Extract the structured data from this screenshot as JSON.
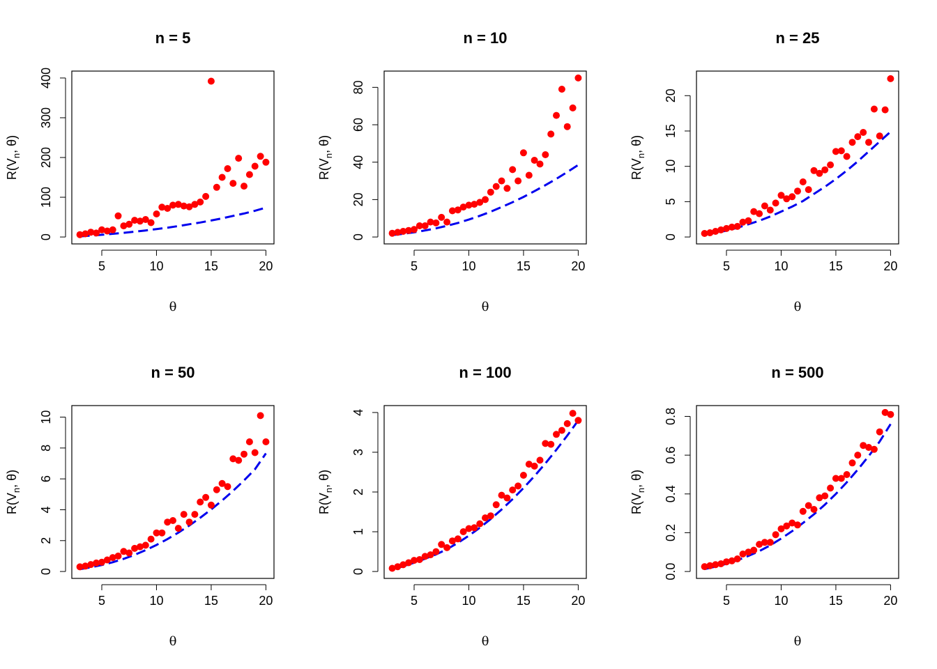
{
  "colors": {
    "points": "#ff0000",
    "curve": "#0000ee",
    "frame": "#000000"
  },
  "chart_data": [
    {
      "type": "scatter",
      "title": "n =  5",
      "xlabel": "θ",
      "ylabel_main": "R(V",
      "ylabel_sub": "n",
      "ylabel_tail": ", θ)",
      "xlim": [
        3,
        20
      ],
      "ylim": [
        0,
        400
      ],
      "xticks": [
        5,
        10,
        15,
        20
      ],
      "yticks": [
        0,
        100,
        200,
        300,
        400
      ],
      "xtick_labels": [
        "5",
        "10",
        "15",
        "20"
      ],
      "ytick_labels": [
        "0",
        "100",
        "200",
        "300",
        "400"
      ],
      "series": [
        {
          "type": "scatter",
          "x": [
            3.0,
            3.5,
            4.0,
            4.5,
            5.0,
            5.5,
            6.0,
            6.5,
            7.0,
            7.5,
            8.0,
            8.5,
            9.0,
            9.5,
            10.0,
            10.5,
            11.0,
            11.5,
            12.0,
            12.5,
            13.0,
            13.5,
            14.0,
            14.5,
            15.0,
            15.5,
            16.0,
            16.5,
            17.0,
            17.5,
            18.0,
            18.5,
            19.0,
            19.5,
            20.0
          ],
          "y": [
            6,
            8,
            12,
            10,
            18,
            15,
            18,
            53,
            28,
            32,
            42,
            40,
            44,
            36,
            58,
            75,
            72,
            80,
            82,
            78,
            76,
            82,
            88,
            102,
            392,
            125,
            150,
            172,
            135,
            198,
            128,
            157,
            178,
            203,
            188
          ]
        },
        {
          "type": "line",
          "x": [
            3,
            4,
            5,
            6,
            7,
            8,
            9,
            10,
            11,
            12,
            13,
            14,
            15,
            16,
            17,
            18,
            19,
            20
          ],
          "y": [
            1.5,
            3.5,
            5.5,
            8,
            10.5,
            13.5,
            16.5,
            20,
            23.5,
            27.5,
            32,
            36.5,
            41.5,
            47,
            53,
            59,
            66,
            74
          ]
        }
      ]
    },
    {
      "type": "scatter",
      "title": "n =  10",
      "xlabel": "θ",
      "ylabel_main": "R(V",
      "ylabel_sub": "n",
      "ylabel_tail": ", θ)",
      "xlim": [
        3,
        20
      ],
      "ylim": [
        0,
        85
      ],
      "xticks": [
        5,
        10,
        15,
        20
      ],
      "yticks": [
        0,
        20,
        40,
        60,
        80
      ],
      "xtick_labels": [
        "5",
        "10",
        "15",
        "20"
      ],
      "ytick_labels": [
        "0",
        "20",
        "40",
        "60",
        "80"
      ],
      "series": [
        {
          "type": "scatter",
          "x": [
            3.0,
            3.5,
            4.0,
            4.5,
            5.0,
            5.5,
            6.0,
            6.5,
            7.0,
            7.5,
            8.0,
            8.5,
            9.0,
            9.5,
            10.0,
            10.5,
            11.0,
            11.5,
            12.0,
            12.5,
            13.0,
            13.5,
            14.0,
            14.5,
            15.0,
            15.5,
            16.0,
            16.5,
            17.0,
            17.5,
            18.0,
            18.5,
            19.0,
            19.5,
            20.0
          ],
          "y": [
            2,
            2.5,
            3,
            3.5,
            4,
            6,
            6,
            8,
            7.5,
            10.5,
            8,
            14,
            14.5,
            16,
            17,
            17.5,
            18.5,
            20,
            24,
            27,
            30,
            26,
            36,
            30,
            45,
            33,
            41,
            39,
            44,
            55,
            65,
            79,
            59,
            69,
            85
          ]
        },
        {
          "type": "line",
          "x": [
            3,
            4,
            5,
            6,
            7,
            8,
            9,
            10,
            11,
            12,
            13,
            14,
            15,
            16,
            17,
            18,
            19,
            20
          ],
          "y": [
            1,
            1.7,
            2.5,
            3.5,
            4.6,
            6,
            7.5,
            9.3,
            11.3,
            13.5,
            16,
            18.6,
            21.4,
            24.5,
            27.7,
            31.1,
            34.7,
            38.5
          ]
        }
      ]
    },
    {
      "type": "scatter",
      "title": "n =  25",
      "xlabel": "θ",
      "ylabel_main": "R(V",
      "ylabel_sub": "n",
      "ylabel_tail": ", θ)",
      "xlim": [
        3,
        20
      ],
      "ylim": [
        0,
        22.5
      ],
      "xticks": [
        5,
        10,
        15,
        20
      ],
      "yticks": [
        0,
        5,
        10,
        15,
        20
      ],
      "xtick_labels": [
        "5",
        "10",
        "15",
        "20"
      ],
      "ytick_labels": [
        "0",
        "5",
        "10",
        "15",
        "20"
      ],
      "series": [
        {
          "type": "scatter",
          "x": [
            3.0,
            3.5,
            4.0,
            4.5,
            5.0,
            5.5,
            6.0,
            6.5,
            7.0,
            7.5,
            8.0,
            8.5,
            9.0,
            9.5,
            10.0,
            10.5,
            11.0,
            11.5,
            12.0,
            12.5,
            13.0,
            13.5,
            14.0,
            14.5,
            15.0,
            15.5,
            16.0,
            16.5,
            17.0,
            17.5,
            18.0,
            18.5,
            19.0,
            19.5,
            20.0
          ],
          "y": [
            0.5,
            0.6,
            0.8,
            1.0,
            1.2,
            1.4,
            1.5,
            2.1,
            2.3,
            3.6,
            3.3,
            4.4,
            3.8,
            4.8,
            5.9,
            5.4,
            5.7,
            6.5,
            7.8,
            6.7,
            9.4,
            9.0,
            9.5,
            10.2,
            12.1,
            12.2,
            11.4,
            13.4,
            14.2,
            14.8,
            13.4,
            18.1,
            14.3,
            18.0,
            22.4
          ]
        },
        {
          "type": "line",
          "x": [
            3,
            4,
            5,
            6,
            7,
            8,
            9,
            10,
            11,
            12,
            13,
            14,
            15,
            16,
            17,
            18,
            19,
            20
          ],
          "y": [
            0.3,
            0.6,
            0.9,
            1.3,
            1.8,
            2.3,
            2.9,
            3.6,
            4.3,
            5.1,
            6.1,
            7.1,
            8.2,
            9.4,
            10.7,
            12.1,
            13.5,
            14.9
          ]
        }
      ]
    },
    {
      "type": "scatter",
      "title": "n =  50",
      "xlabel": "θ",
      "ylabel_main": "R(V",
      "ylabel_sub": "n",
      "ylabel_tail": ", θ)",
      "xlim": [
        3,
        20
      ],
      "ylim": [
        0,
        10.3
      ],
      "xticks": [
        5,
        10,
        15,
        20
      ],
      "yticks": [
        0,
        2,
        4,
        6,
        8,
        10
      ],
      "xtick_labels": [
        "5",
        "10",
        "15",
        "20"
      ],
      "ytick_labels": [
        "0",
        "2",
        "4",
        "6",
        "8",
        "10"
      ],
      "series": [
        {
          "type": "scatter",
          "x": [
            3.0,
            3.5,
            4.0,
            4.5,
            5.0,
            5.5,
            6.0,
            6.5,
            7.0,
            7.5,
            8.0,
            8.5,
            9.0,
            9.5,
            10.0,
            10.5,
            11.0,
            11.5,
            12.0,
            12.5,
            13.0,
            13.5,
            14.0,
            14.5,
            15.0,
            15.5,
            16.0,
            16.5,
            17.0,
            17.5,
            18.0,
            18.5,
            19.0,
            19.5,
            20.0
          ],
          "y": [
            0.3,
            0.35,
            0.45,
            0.55,
            0.6,
            0.75,
            0.9,
            1.0,
            1.3,
            1.2,
            1.5,
            1.6,
            1.7,
            2.1,
            2.5,
            2.5,
            3.2,
            3.3,
            2.8,
            3.7,
            3.2,
            3.7,
            4.5,
            4.8,
            4.3,
            5.3,
            5.7,
            5.5,
            7.3,
            7.2,
            7.6,
            8.4,
            7.7,
            10.1,
            8.4
          ]
        },
        {
          "type": "line",
          "x": [
            3,
            4,
            5,
            6,
            7,
            8,
            9,
            10,
            11,
            12,
            13,
            14,
            15,
            16,
            17,
            18,
            19,
            20
          ],
          "y": [
            0.15,
            0.27,
            0.42,
            0.6,
            0.82,
            1.08,
            1.38,
            1.72,
            2.1,
            2.52,
            2.98,
            3.48,
            4.02,
            4.6,
            5.22,
            5.9,
            6.62,
            7.65
          ]
        }
      ]
    },
    {
      "type": "scatter",
      "title": "n =  100",
      "xlabel": "θ",
      "ylabel_main": "R(V",
      "ylabel_sub": "n",
      "ylabel_tail": ", θ)",
      "xlim": [
        3,
        20
      ],
      "ylim": [
        0,
        4.0
      ],
      "xticks": [
        5,
        10,
        15,
        20
      ],
      "yticks": [
        0,
        1,
        2,
        3,
        4
      ],
      "xtick_labels": [
        "5",
        "10",
        "15",
        "20"
      ],
      "ytick_labels": [
        "0",
        "1",
        "2",
        "3",
        "4"
      ],
      "series": [
        {
          "type": "scatter",
          "x": [
            3.0,
            3.5,
            4.0,
            4.5,
            5.0,
            5.5,
            6.0,
            6.5,
            7.0,
            7.5,
            8.0,
            8.5,
            9.0,
            9.5,
            10.0,
            10.5,
            11.0,
            11.5,
            12.0,
            12.5,
            13.0,
            13.5,
            14.0,
            14.5,
            15.0,
            15.5,
            16.0,
            16.5,
            17.0,
            17.5,
            18.0,
            18.5,
            19.0,
            19.5,
            20.0
          ],
          "y": [
            0.08,
            0.12,
            0.17,
            0.22,
            0.28,
            0.3,
            0.38,
            0.42,
            0.5,
            0.68,
            0.6,
            0.77,
            0.82,
            1.0,
            1.08,
            1.1,
            1.2,
            1.35,
            1.4,
            1.68,
            1.92,
            1.85,
            2.05,
            2.15,
            2.42,
            2.7,
            2.65,
            2.8,
            3.22,
            3.2,
            3.45,
            3.55,
            3.72,
            3.98,
            3.8
          ]
        },
        {
          "type": "line",
          "x": [
            3,
            4,
            5,
            6,
            7,
            8,
            9,
            10,
            11,
            12,
            13,
            14,
            15,
            16,
            17,
            18,
            19,
            20
          ],
          "y": [
            0.06,
            0.13,
            0.22,
            0.32,
            0.43,
            0.56,
            0.72,
            0.9,
            1.1,
            1.32,
            1.56,
            1.82,
            2.1,
            2.4,
            2.72,
            3.06,
            3.42,
            3.8
          ]
        }
      ]
    },
    {
      "type": "scatter",
      "title": "n =  500",
      "xlabel": "θ",
      "ylabel_main": "R(V",
      "ylabel_sub": "n",
      "ylabel_tail": ", θ)",
      "xlim": [
        3,
        20
      ],
      "ylim": [
        0,
        0.82
      ],
      "xticks": [
        5,
        10,
        15,
        20
      ],
      "yticks": [
        0,
        0.2,
        0.4,
        0.6,
        0.8
      ],
      "xtick_labels": [
        "5",
        "10",
        "15",
        "20"
      ],
      "ytick_labels": [
        "0.0",
        "0.2",
        "0.4",
        "0.6",
        "0.8"
      ],
      "series": [
        {
          "type": "scatter",
          "x": [
            3.0,
            3.5,
            4.0,
            4.5,
            5.0,
            5.5,
            6.0,
            6.5,
            7.0,
            7.5,
            8.0,
            8.5,
            9.0,
            9.5,
            10.0,
            10.5,
            11.0,
            11.5,
            12.0,
            12.5,
            13.0,
            13.5,
            14.0,
            14.5,
            15.0,
            15.5,
            16.0,
            16.5,
            17.0,
            17.5,
            18.0,
            18.5,
            19.0,
            19.5,
            20.0
          ],
          "y": [
            0.025,
            0.03,
            0.035,
            0.04,
            0.05,
            0.055,
            0.065,
            0.09,
            0.1,
            0.11,
            0.14,
            0.15,
            0.15,
            0.19,
            0.22,
            0.235,
            0.25,
            0.24,
            0.31,
            0.34,
            0.32,
            0.38,
            0.39,
            0.43,
            0.48,
            0.48,
            0.5,
            0.56,
            0.6,
            0.65,
            0.64,
            0.63,
            0.72,
            0.82,
            0.81
          ]
        },
        {
          "type": "line",
          "x": [
            3,
            4,
            5,
            6,
            7,
            8,
            9,
            10,
            11,
            12,
            13,
            14,
            15,
            16,
            17,
            18,
            19,
            20
          ],
          "y": [
            0.012,
            0.025,
            0.04,
            0.058,
            0.08,
            0.105,
            0.135,
            0.17,
            0.208,
            0.25,
            0.295,
            0.345,
            0.4,
            0.46,
            0.525,
            0.595,
            0.67,
            0.76
          ]
        }
      ]
    }
  ]
}
